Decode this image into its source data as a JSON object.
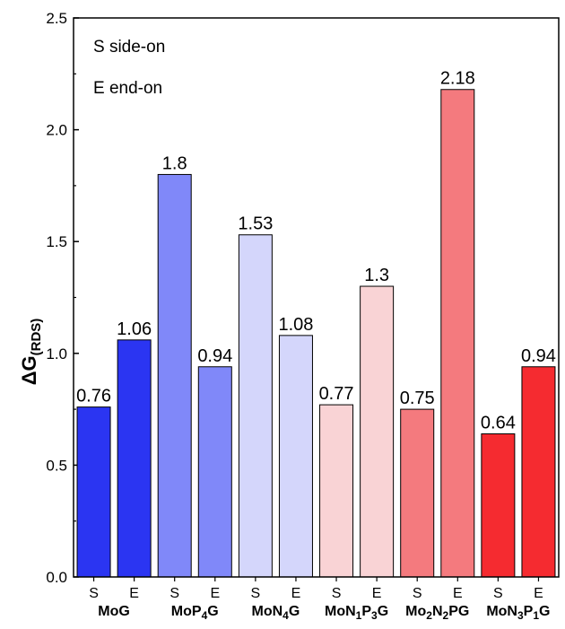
{
  "chart_data": {
    "type": "bar",
    "ylabel": {
      "main": "ΔG",
      "sub": "(RDS)"
    },
    "ylim": [
      0,
      2.5
    ],
    "yticks": [
      "0.0",
      "0.5",
      "1.0",
      "1.5",
      "2.0",
      "2.5"
    ],
    "legend": {
      "placement": "top-left",
      "lines": [
        "S side-on",
        "E end-on"
      ]
    },
    "groups": [
      {
        "label": {
          "base": "MoG",
          "parts": [
            [
              "MoG",
              false
            ]
          ]
        },
        "bars": [
          {
            "sub": "S",
            "value": 0.76,
            "label": "0.76",
            "color": "#2b35f2"
          },
          {
            "sub": "E",
            "value": 1.06,
            "label": "1.06",
            "color": "#2b35f2"
          }
        ]
      },
      {
        "label": {
          "base": "MoP4G",
          "parts": [
            [
              "MoP",
              false
            ],
            [
              "4",
              true
            ],
            [
              "G",
              false
            ]
          ]
        },
        "bars": [
          {
            "sub": "S",
            "value": 1.8,
            "label": "1.8",
            "color": "#8088f9"
          },
          {
            "sub": "E",
            "value": 0.94,
            "label": "0.94",
            "color": "#8088f9"
          }
        ]
      },
      {
        "label": {
          "base": "MoN4G",
          "parts": [
            [
              "MoN",
              false
            ],
            [
              "4",
              true
            ],
            [
              "G",
              false
            ]
          ]
        },
        "bars": [
          {
            "sub": "S",
            "value": 1.53,
            "label": "1.53",
            "color": "#d4d6fb"
          },
          {
            "sub": "E",
            "value": 1.08,
            "label": "1.08",
            "color": "#d4d6fb"
          }
        ]
      },
      {
        "label": {
          "base": "MoN1P3G",
          "parts": [
            [
              "MoN",
              false
            ],
            [
              "1",
              true
            ],
            [
              "P",
              false
            ],
            [
              "3",
              true
            ],
            [
              "G",
              false
            ]
          ]
        },
        "bars": [
          {
            "sub": "S",
            "value": 0.77,
            "label": "0.77",
            "color": "#f9d3d5"
          },
          {
            "sub": "E",
            "value": 1.3,
            "label": "1.3",
            "color": "#f9d3d5"
          }
        ]
      },
      {
        "label": {
          "base": "Mo2N2PG",
          "parts": [
            [
              "Mo",
              false
            ],
            [
              "2",
              true
            ],
            [
              "N",
              false
            ],
            [
              "2",
              true
            ],
            [
              "PG",
              false
            ]
          ]
        },
        "bars": [
          {
            "sub": "S",
            "value": 0.75,
            "label": "0.75",
            "color": "#f47a7e"
          },
          {
            "sub": "E",
            "value": 2.18,
            "label": "2.18",
            "color": "#f47a7e"
          }
        ]
      },
      {
        "label": {
          "base": "MoN3P1G",
          "parts": [
            [
              "MoN",
              false
            ],
            [
              "3",
              true
            ],
            [
              "P",
              false
            ],
            [
              "1",
              true
            ],
            [
              "G",
              false
            ]
          ]
        },
        "bars": [
          {
            "sub": "S",
            "value": 0.64,
            "label": "0.64",
            "color": "#f52b30"
          },
          {
            "sub": "E",
            "value": 0.94,
            "label": "0.94",
            "color": "#f52b30"
          }
        ]
      }
    ]
  }
}
